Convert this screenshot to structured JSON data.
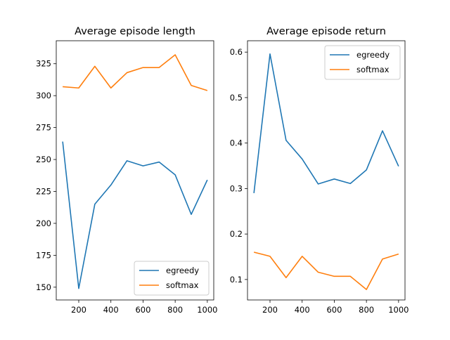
{
  "colors": {
    "egreedy": "#1f77b4",
    "softmax": "#ff7f0e"
  },
  "chart_data": [
    {
      "type": "line",
      "title": "Average episode length",
      "xlabel": "",
      "ylabel": "",
      "xlim": [
        60,
        1040
      ],
      "ylim": [
        140,
        343
      ],
      "xticks": [
        200,
        400,
        600,
        800,
        1000
      ],
      "yticks": [
        150,
        175,
        200,
        225,
        250,
        275,
        300,
        325
      ],
      "legend_position": "lower-right",
      "grid": false,
      "x": [
        100,
        200,
        300,
        400,
        500,
        600,
        700,
        800,
        900,
        1000
      ],
      "series": [
        {
          "name": "egreedy",
          "color": "#1f77b4",
          "values": [
            264,
            149,
            215,
            230,
            249,
            245,
            248,
            238,
            207,
            234
          ]
        },
        {
          "name": "softmax",
          "color": "#ff7f0e",
          "values": [
            307,
            306,
            323,
            306,
            318,
            322,
            322,
            332,
            308,
            304
          ]
        }
      ]
    },
    {
      "type": "line",
      "title": "Average episode return",
      "xlabel": "",
      "ylabel": "",
      "xlim": [
        60,
        1040
      ],
      "ylim": [
        0.055,
        0.625
      ],
      "xticks": [
        200,
        400,
        600,
        800,
        1000
      ],
      "yticks": [
        0.1,
        0.2,
        0.3,
        0.4,
        0.5,
        0.6
      ],
      "legend_position": "upper-right",
      "grid": false,
      "x": [
        100,
        200,
        300,
        400,
        500,
        600,
        700,
        800,
        900,
        1000
      ],
      "series": [
        {
          "name": "egreedy",
          "color": "#1f77b4",
          "values": [
            0.29,
            0.596,
            0.406,
            0.365,
            0.31,
            0.321,
            0.311,
            0.341,
            0.427,
            0.349
          ]
        },
        {
          "name": "softmax",
          "color": "#ff7f0e",
          "values": [
            0.16,
            0.151,
            0.104,
            0.151,
            0.116,
            0.107,
            0.107,
            0.078,
            0.145,
            0.156
          ]
        }
      ]
    }
  ]
}
